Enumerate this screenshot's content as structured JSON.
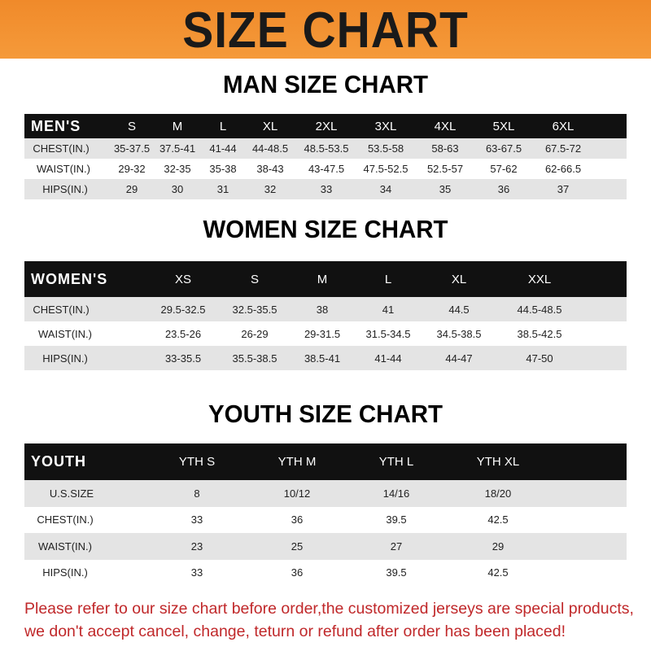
{
  "banner": {
    "title": "SIZE CHART",
    "color": "#f08a2a"
  },
  "men": {
    "title": "MAN SIZE CHART",
    "header": "MEN'S",
    "sizes": [
      "S",
      "M",
      "L",
      "XL",
      "2XL",
      "3XL",
      "4XL",
      "5XL",
      "6XL"
    ],
    "rows": [
      {
        "label": "CHEST(IN.)",
        "values": [
          "35-37.5",
          "37.5-41",
          "41-44",
          "44-48.5",
          "48.5-53.5",
          "53.5-58",
          "58-63",
          "63-67.5",
          "67.5-72"
        ]
      },
      {
        "label": "WAIST(IN.)",
        "values": [
          "29-32",
          "32-35",
          "35-38",
          "38-43",
          "43-47.5",
          "47.5-52.5",
          "52.5-57",
          "57-62",
          "62-66.5"
        ]
      },
      {
        "label": "HIPS(IN.)",
        "values": [
          "29",
          "30",
          "31",
          "32",
          "33",
          "34",
          "35",
          "36",
          "37"
        ]
      }
    ]
  },
  "women": {
    "title": "WOMEN SIZE CHART",
    "header": "WOMEN'S",
    "sizes": [
      "XS",
      "S",
      "M",
      "L",
      "XL",
      "XXL"
    ],
    "rows": [
      {
        "label": "CHEST(IN.)",
        "values": [
          "29.5-32.5",
          "32.5-35.5",
          "38",
          "41",
          "44.5",
          "44.5-48.5"
        ]
      },
      {
        "label": "WAIST(IN.)",
        "values": [
          "23.5-26",
          "26-29",
          "29-31.5",
          "31.5-34.5",
          "34.5-38.5",
          "38.5-42.5"
        ]
      },
      {
        "label": "HIPS(IN.)",
        "values": [
          "33-35.5",
          "35.5-38.5",
          "38.5-41",
          "41-44",
          "44-47",
          "47-50"
        ]
      }
    ]
  },
  "youth": {
    "title": "YOUTH SIZE CHART",
    "header": "YOUTH",
    "sizes": [
      "YTH S",
      "YTH M",
      "YTH L",
      "YTH XL"
    ],
    "rows": [
      {
        "label": "U.S.SIZE",
        "values": [
          "8",
          "10/12",
          "14/16",
          "18/20"
        ]
      },
      {
        "label": "CHEST(IN.)",
        "values": [
          "33",
          "36",
          "39.5",
          "42.5"
        ]
      },
      {
        "label": "WAIST(IN.)",
        "values": [
          "23",
          "25",
          "27",
          "29"
        ]
      },
      {
        "label": "HIPS(IN.)",
        "values": [
          "33",
          "36",
          "39.5",
          "42.5"
        ]
      }
    ]
  },
  "notice": {
    "line1": "Please refer to our size chart before order,the customized jerseys are special products,",
    "line2": "we don't accept cancel, change, teturn or refund after order has been placed!",
    "color": "#c0282a"
  }
}
